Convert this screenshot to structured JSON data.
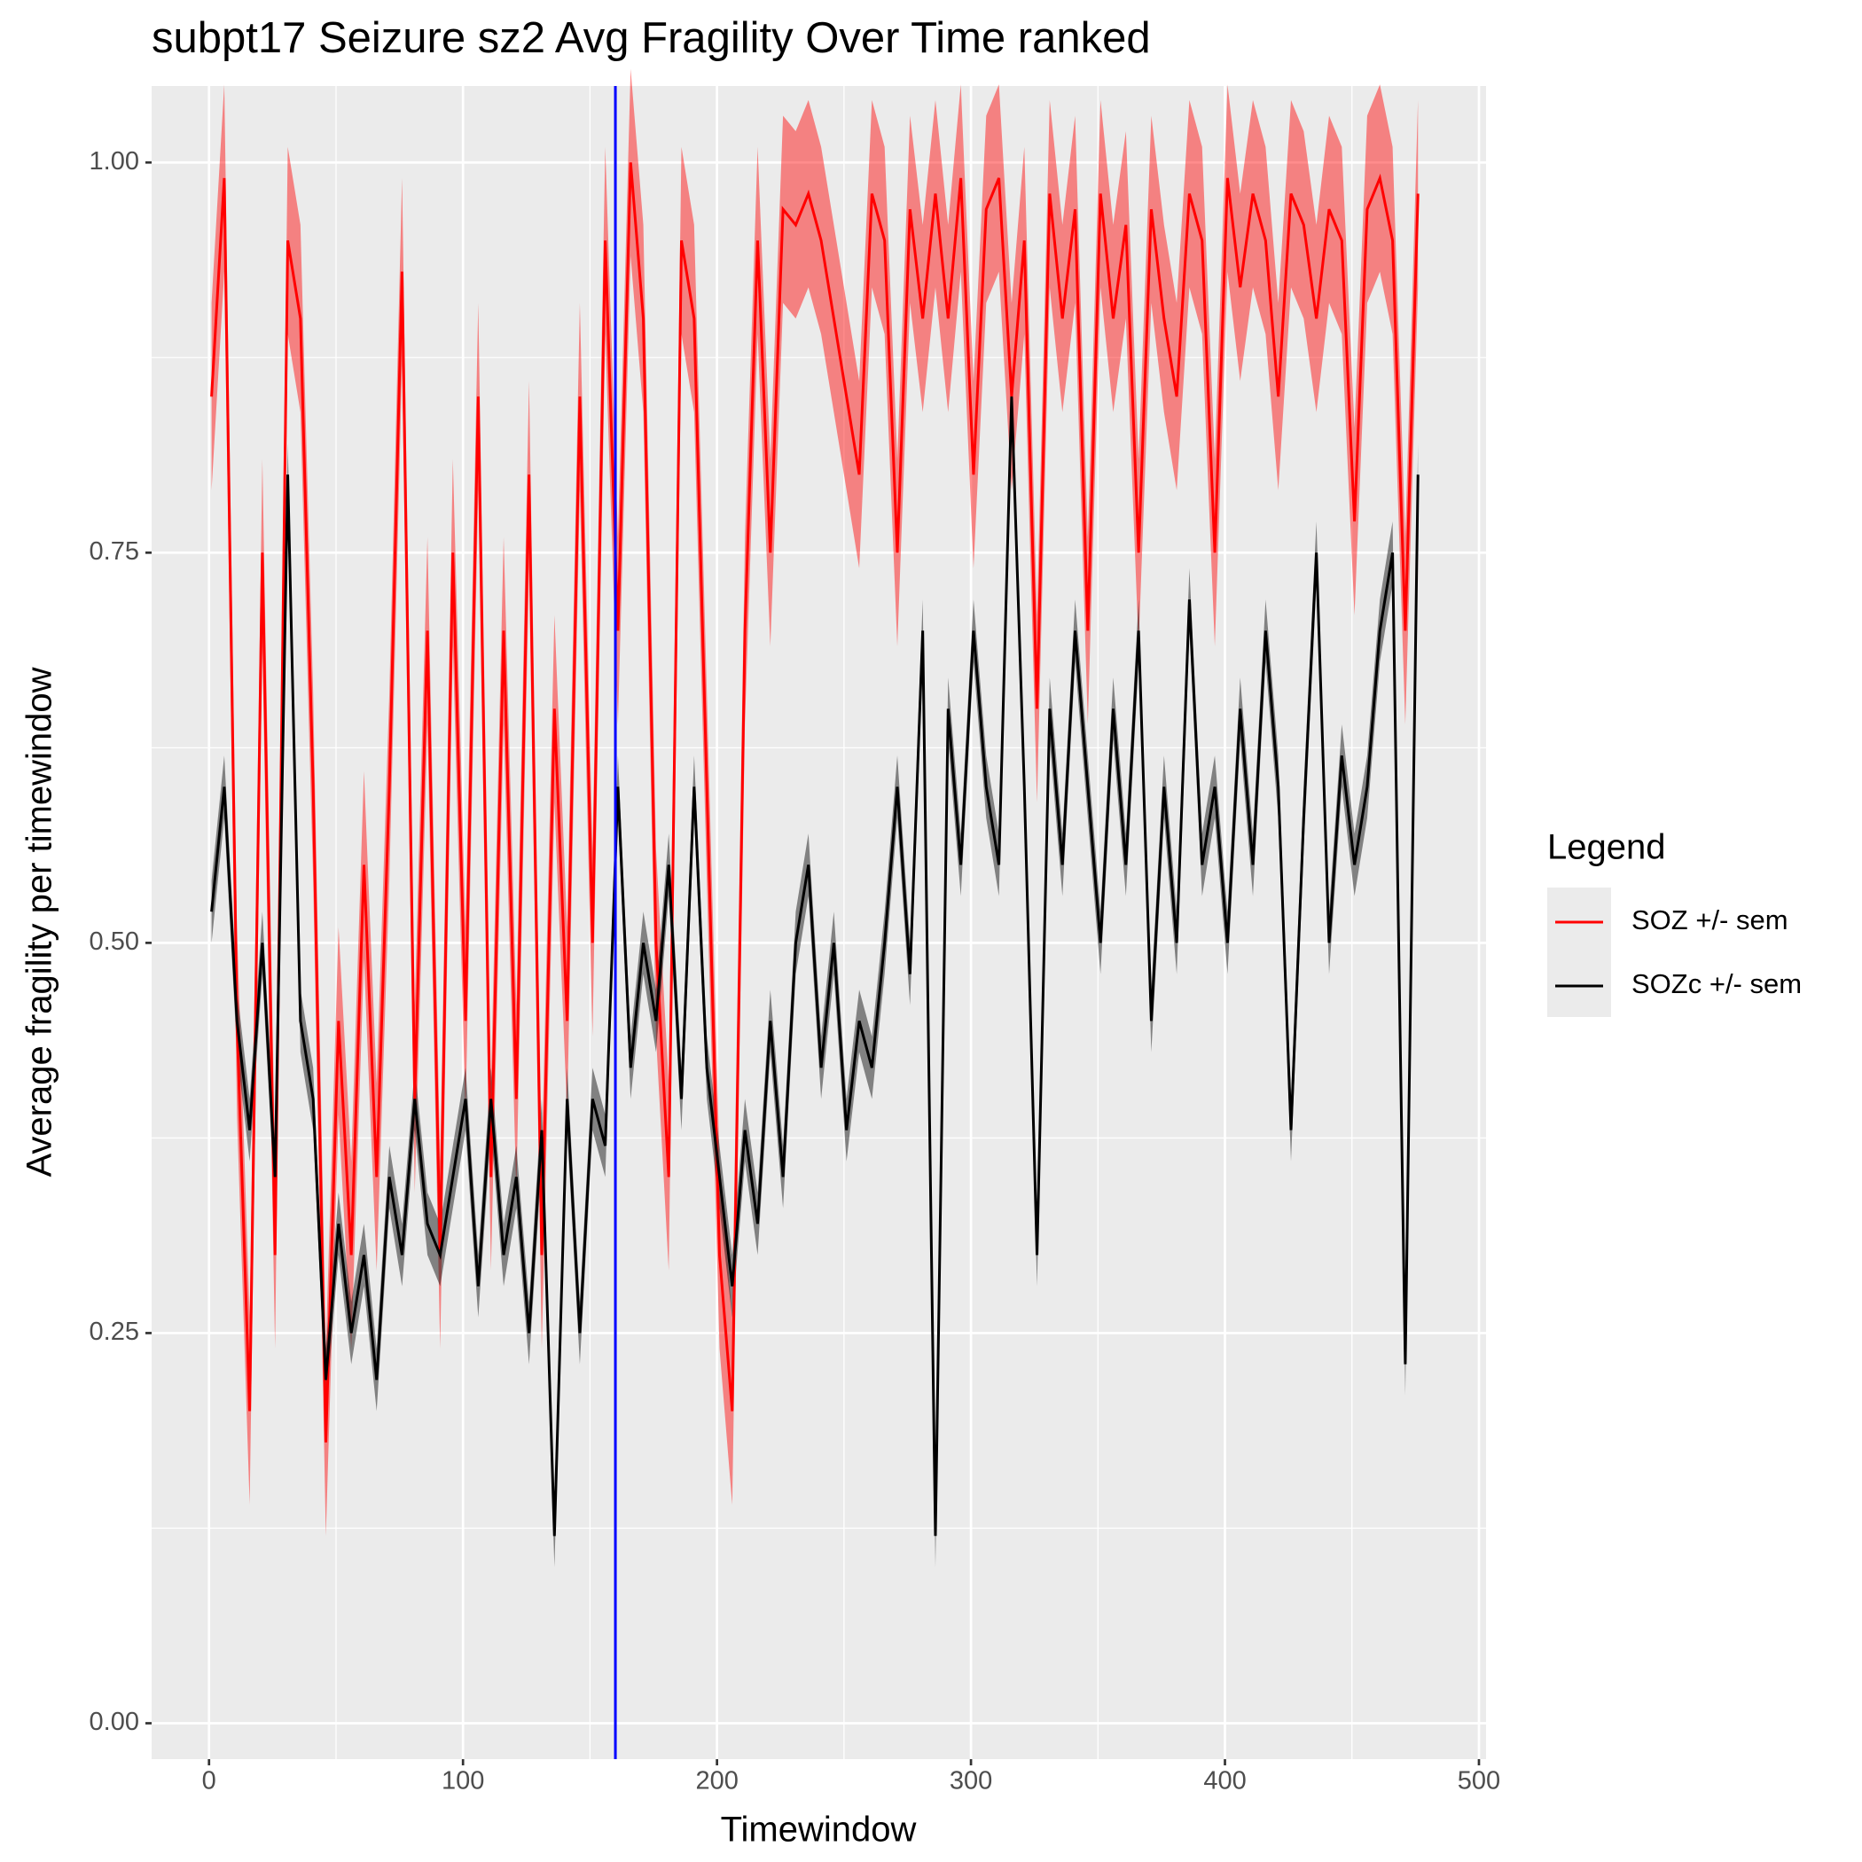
{
  "chart_data": {
    "type": "line",
    "title": "subpt17 Seizure sz2 Avg Fragility Over Time ranked",
    "x_label": "Timewindow",
    "y_label": "Average fragility per timewindow",
    "legend_title": "Legend",
    "legend_position": "right",
    "grid": true,
    "vline": 160,
    "vline_color": "#0000FF",
    "xlim": [
      -22.6,
      502.8
    ],
    "ylim": [
      -0.023,
      1.049
    ],
    "xticks": [
      0,
      100,
      200,
      300,
      400,
      500
    ],
    "yticks": [
      {
        "value": 0,
        "label": "0.00"
      },
      0.25,
      {
        "value": 0.5,
        "label": "0.50"
      },
      0.75,
      {
        "value": 1,
        "label": "1.00"
      }
    ],
    "x": [
      1,
      6,
      11,
      16,
      21,
      26,
      31,
      36,
      41,
      46,
      51,
      56,
      61,
      66,
      71,
      76,
      81,
      86,
      91,
      96,
      101,
      106,
      111,
      116,
      121,
      126,
      131,
      136,
      141,
      146,
      151,
      156,
      161,
      166,
      171,
      176,
      181,
      186,
      191,
      196,
      201,
      206,
      211,
      216,
      221,
      226,
      231,
      236,
      241,
      246,
      251,
      256,
      261,
      266,
      271,
      276,
      281,
      286,
      291,
      296,
      301,
      306,
      311,
      316,
      321,
      326,
      331,
      336,
      341,
      346,
      351,
      356,
      361,
      366,
      371,
      376,
      381,
      386,
      391,
      396,
      401,
      406,
      411,
      416,
      421,
      426,
      431,
      436,
      441,
      446,
      451,
      456,
      461,
      466,
      471,
      476
    ],
    "series": [
      {
        "name": "SOZ +/- sem",
        "color": "#FF0000",
        "sem": 0.06,
        "values": [
          0.85,
          0.99,
          0.45,
          0.2,
          0.75,
          0.3,
          0.95,
          0.9,
          0.6,
          0.18,
          0.45,
          0.3,
          0.55,
          0.35,
          0.6,
          0.93,
          0.4,
          0.7,
          0.3,
          0.75,
          0.45,
          0.85,
          0.35,
          0.7,
          0.4,
          0.8,
          0.3,
          0.65,
          0.45,
          0.85,
          0.5,
          0.95,
          0.7,
          1.0,
          0.9,
          0.5,
          0.35,
          0.95,
          0.9,
          0.6,
          0.3,
          0.2,
          0.7,
          0.95,
          0.75,
          0.97,
          0.96,
          0.98,
          0.95,
          0.9,
          0.85,
          0.8,
          0.98,
          0.95,
          0.75,
          0.97,
          0.9,
          0.98,
          0.9,
          0.99,
          0.8,
          0.97,
          0.99,
          0.85,
          0.95,
          0.65,
          0.98,
          0.9,
          0.97,
          0.7,
          0.98,
          0.9,
          0.96,
          0.75,
          0.97,
          0.9,
          0.85,
          0.98,
          0.95,
          0.75,
          0.99,
          0.92,
          0.98,
          0.95,
          0.85,
          0.98,
          0.96,
          0.9,
          0.97,
          0.95,
          0.77,
          0.97,
          0.99,
          0.95,
          0.7,
          0.98
        ]
      },
      {
        "name": "SOZc +/- sem",
        "color": "#000000",
        "sem": 0.02,
        "values": [
          0.52,
          0.6,
          0.45,
          0.38,
          0.5,
          0.35,
          0.8,
          0.45,
          0.4,
          0.22,
          0.32,
          0.25,
          0.3,
          0.22,
          0.35,
          0.3,
          0.4,
          0.32,
          0.3,
          0.35,
          0.4,
          0.28,
          0.4,
          0.3,
          0.35,
          0.25,
          0.38,
          0.12,
          0.4,
          0.25,
          0.4,
          0.37,
          0.6,
          0.42,
          0.5,
          0.45,
          0.55,
          0.4,
          0.6,
          0.42,
          0.35,
          0.28,
          0.38,
          0.32,
          0.45,
          0.35,
          0.5,
          0.55,
          0.42,
          0.5,
          0.38,
          0.45,
          0.42,
          0.5,
          0.6,
          0.48,
          0.7,
          0.12,
          0.65,
          0.55,
          0.7,
          0.6,
          0.55,
          0.85,
          0.6,
          0.3,
          0.65,
          0.55,
          0.7,
          0.6,
          0.5,
          0.65,
          0.55,
          0.7,
          0.45,
          0.6,
          0.5,
          0.72,
          0.55,
          0.6,
          0.5,
          0.65,
          0.55,
          0.7,
          0.6,
          0.38,
          0.58,
          0.75,
          0.5,
          0.62,
          0.55,
          0.6,
          0.7,
          0.75,
          0.23,
          0.8
        ]
      }
    ]
  }
}
